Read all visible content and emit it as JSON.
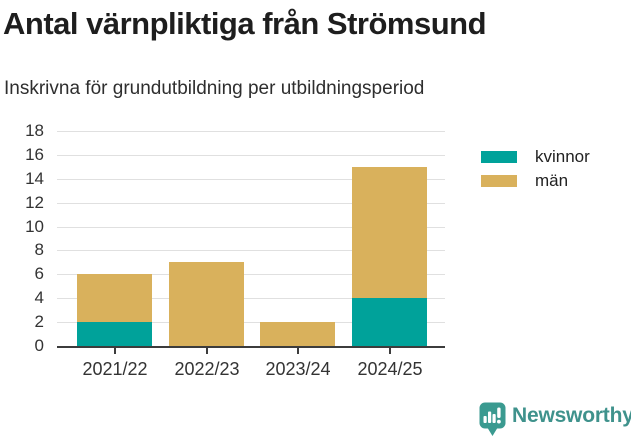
{
  "chart_data": {
    "type": "bar",
    "stacked": true,
    "title": "Antal värnpliktiga från Strömsund",
    "subtitle": "Inskrivna för grundutbildning per utbildningsperiod",
    "categories": [
      "2021/22",
      "2022/23",
      "2023/24",
      "2024/25"
    ],
    "series": [
      {
        "name": "kvinnor",
        "color": "#00a29a",
        "values": [
          2,
          0,
          0,
          4
        ]
      },
      {
        "name": "män",
        "color": "#d9b15c",
        "values": [
          4,
          7,
          2,
          11
        ]
      }
    ],
    "totals": [
      6,
      7,
      2,
      15
    ],
    "ylim": [
      0,
      18
    ],
    "ytick_step": 2,
    "ytick_labels": [
      "0",
      "2",
      "4",
      "6",
      "8",
      "10",
      "12",
      "14",
      "16",
      "18"
    ],
    "grid": true,
    "legend_position": "right",
    "xlabel": "",
    "ylabel": ""
  },
  "colors": {
    "gridline": "#e0e0e0",
    "axis": "#3c3c3c",
    "tick_label": "#333333",
    "background": "#ffffff"
  },
  "branding": {
    "name": "Newsworthy",
    "color": "#3f928c",
    "icon": "bar-chart-speech-bubble-icon"
  }
}
